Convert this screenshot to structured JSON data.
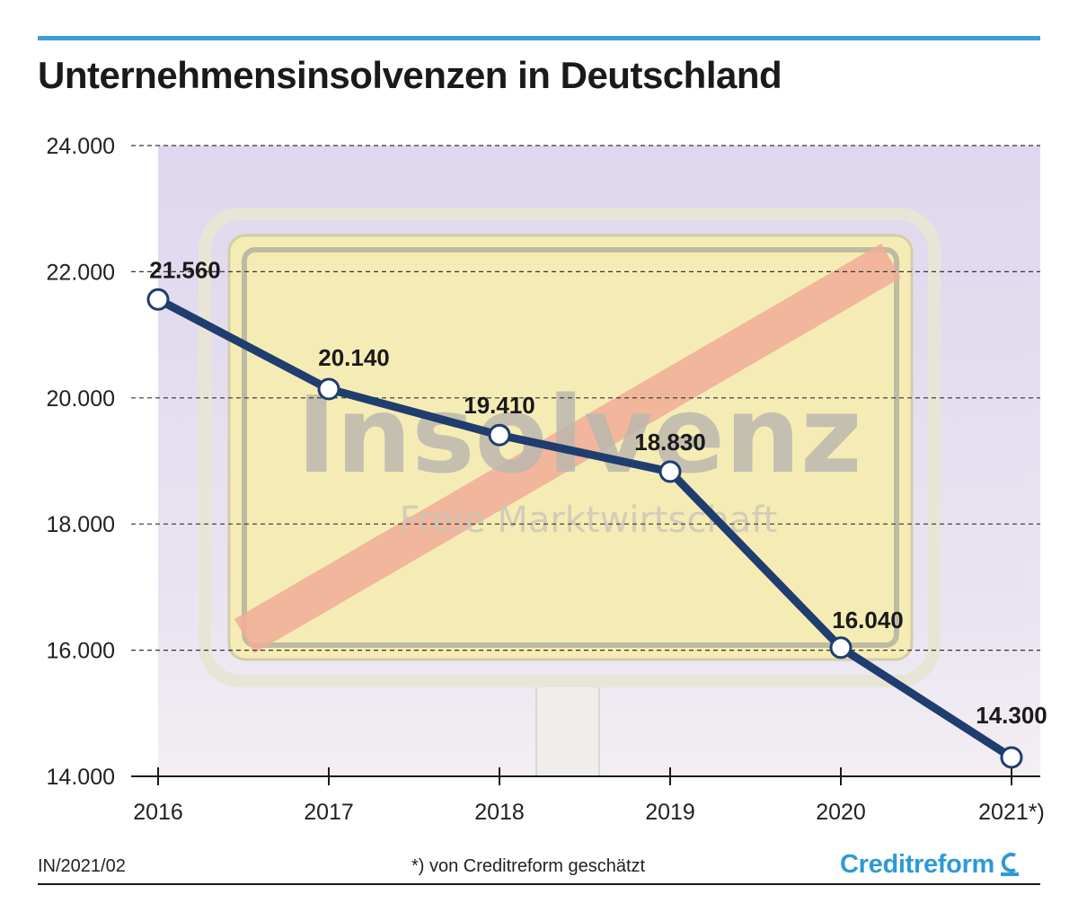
{
  "header": {
    "title": "Unternehmensinsolvenzen in Deutschland"
  },
  "background": {
    "sign_main_text": "Insolvenz",
    "sign_sub_text": "Freie Marktwirtschaft"
  },
  "chart_data": {
    "type": "line",
    "title": "Unternehmensinsolvenzen in Deutschland",
    "xlabel": "",
    "ylabel": "",
    "categories": [
      "2016",
      "2017",
      "2018",
      "2019",
      "2020",
      "2021*)"
    ],
    "series": [
      {
        "values": [
          21560,
          20140,
          19410,
          18830,
          16040,
          14300
        ],
        "labels": [
          "21.560",
          "20.140",
          "19.410",
          "18.830",
          "16.040",
          "14.300"
        ]
      }
    ],
    "ylim": [
      14000,
      24000
    ],
    "yticks": [
      14000,
      16000,
      18000,
      20000,
      22000,
      24000
    ],
    "ytick_labels": [
      "14.000",
      "16.000",
      "18.000",
      "20.000",
      "22.000",
      "24.000"
    ],
    "grid": true,
    "legend": "none",
    "line_color": "#1f3d6e",
    "marker_fill": "#ffffff"
  },
  "footer": {
    "code": "IN/2021/02",
    "note": "*) von Creditreform geschätzt",
    "brand": "Creditreform",
    "brand_color": "#2d9ad6",
    "brand_icon": "creditreform-c-icon"
  }
}
